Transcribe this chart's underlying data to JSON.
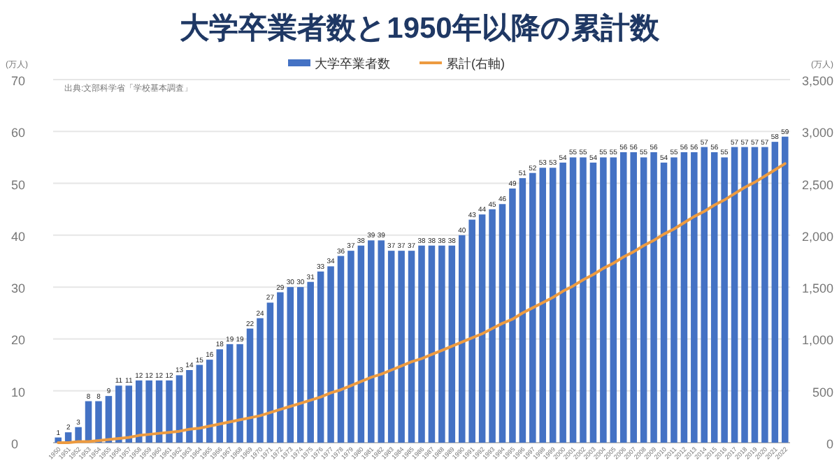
{
  "chart_data": {
    "type": "bar",
    "title": "大学卒業者数と1950年以降の累計数",
    "ylabel": "(万人)",
    "y2label": "(万人)",
    "annotations": [
      "出典:文部科学省「学校基本調査」"
    ],
    "categories": [
      "1950",
      "1951",
      "1952",
      "1953",
      "1954",
      "1955",
      "1956",
      "1957",
      "1958",
      "1959",
      "1960",
      "1961",
      "1962",
      "1963",
      "1964",
      "1965",
      "1966",
      "1967",
      "1968",
      "1969",
      "1970",
      "1971",
      "1972",
      "1973",
      "1974",
      "1975",
      "1976",
      "1977",
      "1978",
      "1979",
      "1980",
      "1981",
      "1982",
      "1983",
      "1984",
      "1985",
      "1986",
      "1987",
      "1988",
      "1989",
      "1990",
      "1991",
      "1992",
      "1993",
      "1994",
      "1995",
      "1996",
      "1997",
      "1998",
      "1999",
      "2000",
      "2001",
      "2002",
      "2003",
      "2004",
      "2005",
      "2006",
      "2007",
      "2008",
      "2009",
      "2010",
      "2011",
      "2012",
      "2013",
      "2014",
      "2015",
      "2016",
      "2017",
      "2018",
      "2019",
      "2020",
      "2021",
      "2022"
    ],
    "series": [
      {
        "name": "大学卒業者数",
        "color": "#4472c4",
        "data_labels": true,
        "values": [
          1,
          2,
          3,
          8,
          8,
          9,
          11,
          11,
          12,
          12,
          12,
          12,
          13,
          14,
          15,
          16,
          18,
          19,
          19,
          22,
          24,
          27,
          29,
          30,
          30,
          31,
          33,
          34,
          36,
          37,
          38,
          39,
          39,
          37,
          37,
          37,
          38,
          38,
          38,
          38,
          40,
          43,
          44,
          45,
          46,
          49,
          51,
          52,
          53,
          53,
          54,
          55,
          55,
          54,
          55,
          55,
          56,
          56,
          55,
          56,
          54,
          55,
          56,
          56,
          57,
          56,
          55,
          57,
          57,
          57,
          57,
          58,
          59
        ]
      },
      {
        "name": "累計(右軸)",
        "type": "line",
        "axis": "y2",
        "color": "#ed9b40",
        "values": [
          0,
          0,
          10,
          10,
          20,
          30,
          40,
          50,
          70,
          80,
          90,
          100,
          110,
          130,
          140,
          160,
          180,
          200,
          220,
          240,
          260,
          290,
          320,
          350,
          380,
          410,
          440,
          480,
          510,
          550,
          590,
          630,
          660,
          700,
          740,
          780,
          810,
          850,
          890,
          930,
          970,
          1010,
          1050,
          1100,
          1150,
          1190,
          1250,
          1300,
          1350,
          1400,
          1460,
          1510,
          1570,
          1620,
          1680,
          1730,
          1790,
          1840,
          1900,
          1950,
          2010,
          2060,
          2120,
          2180,
          2230,
          2290,
          2340,
          2400,
          2460,
          2510,
          2570,
          2630,
          2690
        ]
      }
    ],
    "ylim": [
      0,
      70
    ],
    "yticks": [
      0,
      10,
      20,
      30,
      40,
      50,
      60,
      70
    ],
    "y2lim": [
      0,
      3500
    ],
    "y2ticks": [
      {
        "value": 0,
        "label": "0"
      },
      {
        "value": 500,
        "label": "500"
      },
      {
        "value": 1000,
        "label": "1,000"
      },
      {
        "value": 1500,
        "label": "1,500"
      },
      {
        "value": 2000,
        "label": "2,000"
      },
      {
        "value": 2500,
        "label": "2,500"
      },
      {
        "value": 3000,
        "label": "3,000"
      },
      {
        "value": 3500,
        "label": "3,500"
      }
    ],
    "grid": "y",
    "legend": "top"
  }
}
